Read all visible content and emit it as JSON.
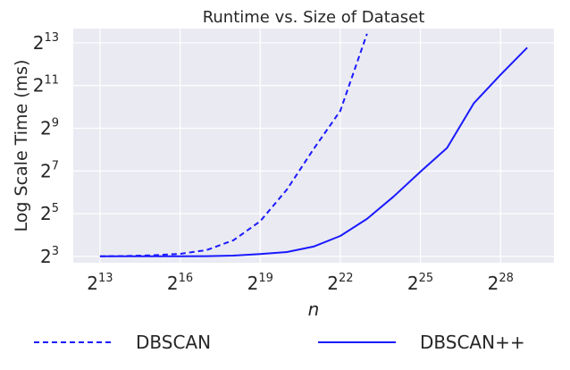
{
  "chart_data": {
    "type": "line",
    "title": "Runtime vs. Size of Dataset",
    "xlabel": "n",
    "ylabel": "Log Scale Time (ms)",
    "x_scale": "log2",
    "y_scale": "log2",
    "xlim": [
      4096,
      1073741824
    ],
    "ylim": [
      6.5,
      13000
    ],
    "xticks": [
      {
        "value": 8192,
        "base": "2",
        "exp": "13"
      },
      {
        "value": 65536,
        "base": "2",
        "exp": "16"
      },
      {
        "value": 524288,
        "base": "2",
        "exp": "19"
      },
      {
        "value": 4194304,
        "base": "2",
        "exp": "22"
      },
      {
        "value": 33554432,
        "base": "2",
        "exp": "25"
      },
      {
        "value": 268435456,
        "base": "2",
        "exp": "28"
      }
    ],
    "yticks": [
      {
        "value": 8,
        "base": "2",
        "exp": "3"
      },
      {
        "value": 32,
        "base": "2",
        "exp": "5"
      },
      {
        "value": 128,
        "base": "2",
        "exp": "7"
      },
      {
        "value": 512,
        "base": "2",
        "exp": "9"
      },
      {
        "value": 2048,
        "base": "2",
        "exp": "11"
      },
      {
        "value": 8192,
        "base": "2",
        "exp": "13"
      }
    ],
    "grid": true,
    "background": "#eaeaf2",
    "legend_placement": "bottom",
    "series": [
      {
        "name": "DBSCAN",
        "style": "dashed",
        "color": "#1a1aff",
        "x": [
          8192,
          16384,
          32768,
          65536,
          131072,
          262144,
          524288,
          1048576,
          2097152,
          4194304,
          8388608
        ],
        "y": [
          8.0,
          8.1,
          8.3,
          8.7,
          9.8,
          13.5,
          25,
          70,
          260,
          900,
          11000
        ]
      },
      {
        "name": "DBSCAN++",
        "style": "solid",
        "color": "#1a1aff",
        "x": [
          8192,
          16384,
          32768,
          65536,
          131072,
          262144,
          524288,
          1048576,
          2097152,
          4194304,
          8388608,
          16777216,
          33554432,
          67108864,
          134217728,
          268435456,
          536870912
        ],
        "y": [
          8.0,
          8.0,
          8.0,
          8.0,
          8.05,
          8.2,
          8.6,
          9.2,
          11,
          15.5,
          27,
          56,
          125,
          270,
          1150,
          2900,
          7000
        ]
      }
    ]
  }
}
